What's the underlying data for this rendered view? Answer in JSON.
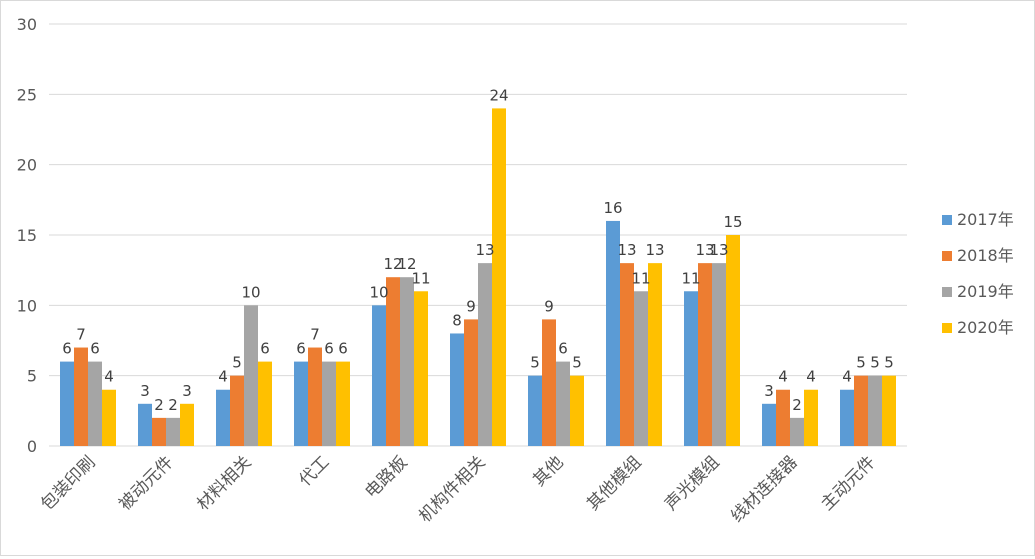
{
  "chart_data": {
    "type": "bar",
    "title": "",
    "xlabel": "",
    "ylabel": "",
    "ylim": [
      0,
      30
    ],
    "yticks": [
      "0",
      "5",
      "10",
      "15",
      "20",
      "25",
      "30"
    ],
    "grid": "horizontal",
    "legend_position": "right",
    "categories": [
      "包装印刷",
      "被动元件",
      "材料相关",
      "代工",
      "电路板",
      "机构件相关",
      "其他",
      "其他模组",
      "声光模组",
      "线材连接器",
      "主动元件"
    ],
    "series": [
      {
        "name": "2017年",
        "color": "#5B9BD5",
        "values": [
          6,
          3,
          4,
          6,
          10,
          8,
          5,
          16,
          11,
          3,
          4
        ]
      },
      {
        "name": "2018年",
        "color": "#ED7D31",
        "values": [
          7,
          2,
          5,
          7,
          12,
          9,
          9,
          13,
          13,
          4,
          5
        ]
      },
      {
        "name": "2019年",
        "color": "#A5A5A5",
        "values": [
          6,
          2,
          10,
          6,
          12,
          13,
          6,
          11,
          13,
          2,
          5
        ]
      },
      {
        "name": "2020年",
        "color": "#FFC000",
        "values": [
          4,
          3,
          6,
          6,
          11,
          24,
          5,
          13,
          15,
          4,
          5
        ]
      }
    ]
  }
}
